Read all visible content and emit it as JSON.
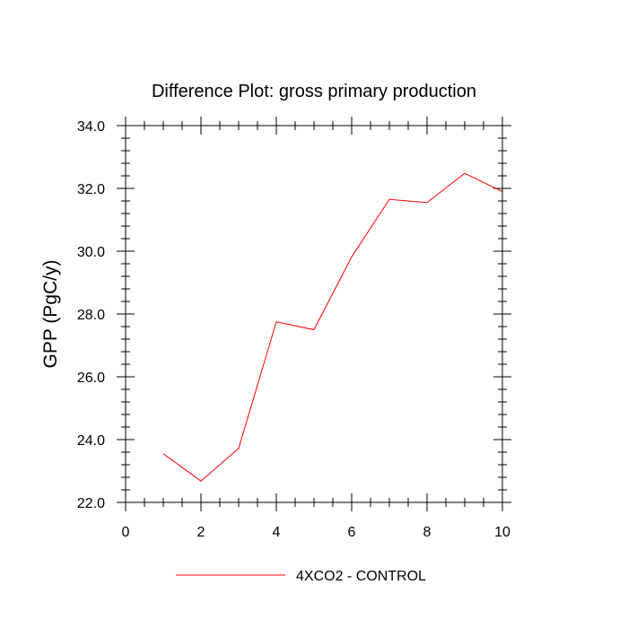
{
  "chart_data": {
    "type": "line",
    "title": "Difference Plot: gross primary production",
    "xlabel": "",
    "ylabel": "GPP  (PgC/y)",
    "xlim": [
      0,
      10
    ],
    "ylim": [
      22.0,
      34.0
    ],
    "x_ticks": [
      "0",
      "2",
      "4",
      "6",
      "8",
      "10"
    ],
    "y_ticks": [
      "22.0",
      "24.0",
      "26.0",
      "28.0",
      "30.0",
      "32.0",
      "34.0"
    ],
    "grid": false,
    "legend_position": "bottom-center",
    "series": [
      {
        "name": "4XCO2 - CONTROL",
        "color": "#ff0000",
        "x": [
          1,
          2,
          3,
          4,
          5,
          6,
          7,
          8,
          9,
          10
        ],
        "values": [
          23.55,
          22.68,
          23.72,
          27.75,
          27.5,
          29.82,
          31.65,
          31.55,
          32.48,
          31.9
        ]
      }
    ]
  }
}
